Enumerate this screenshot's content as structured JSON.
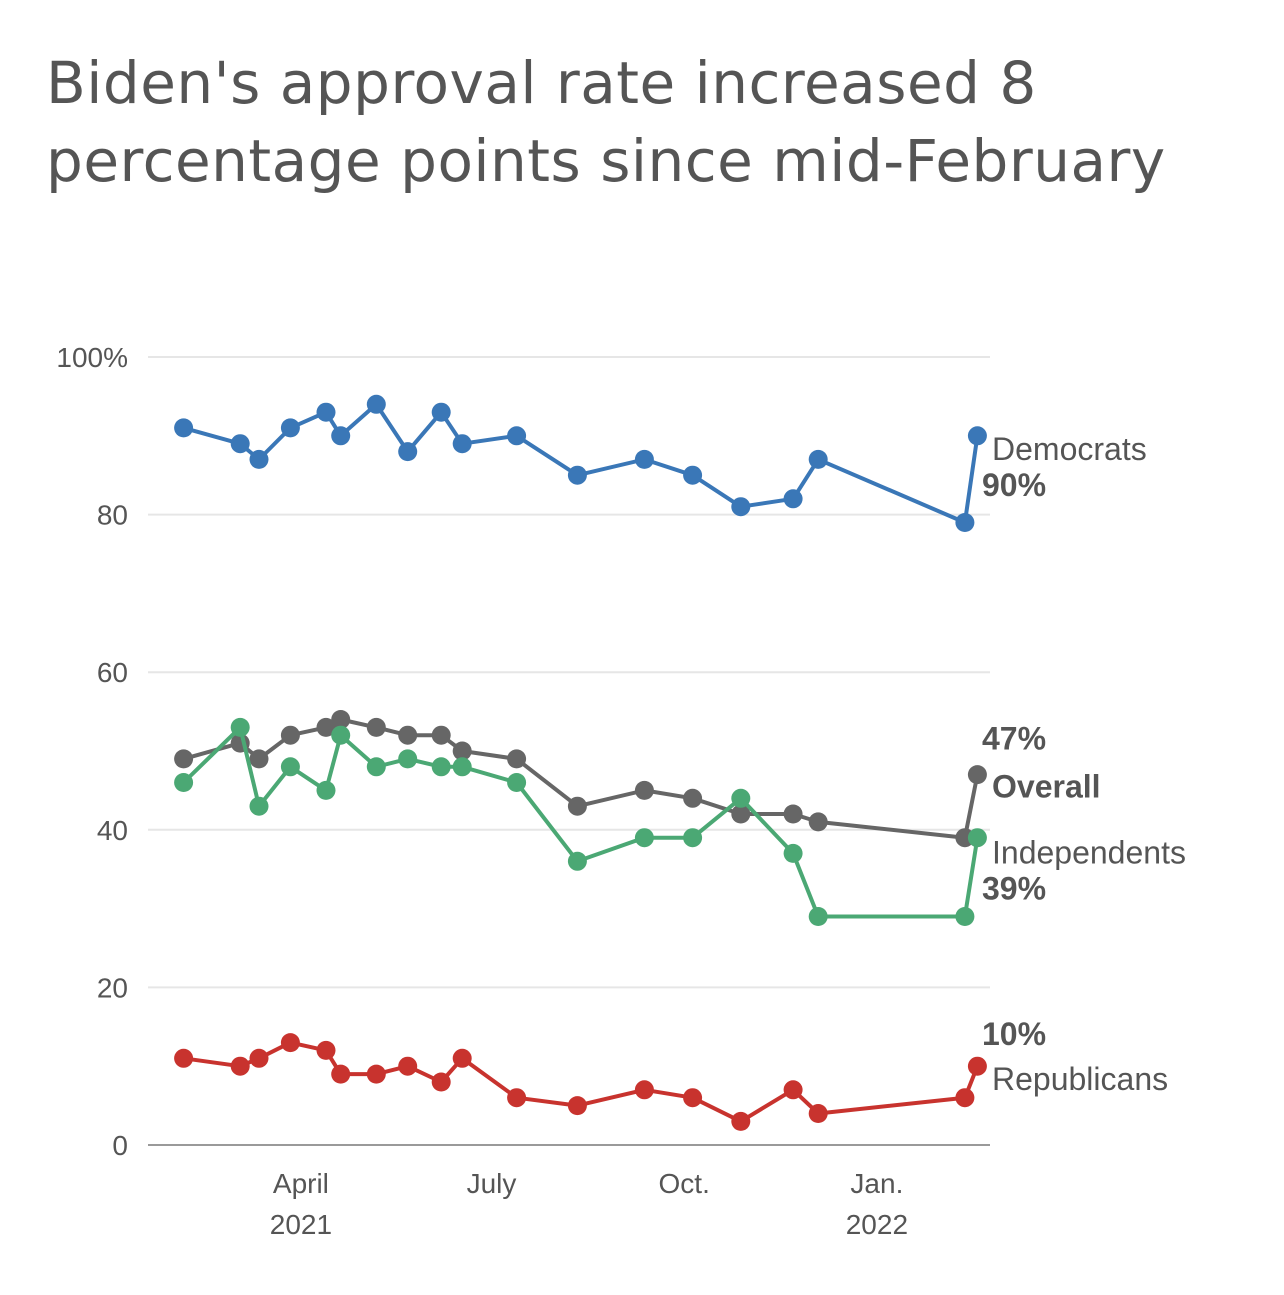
{
  "title": "Biden's approval rate increased 8 percentage points since mid-February",
  "chart_data": {
    "type": "line",
    "title": "Biden's approval rate increased 8 percentage points since mid-February",
    "xlabel": "",
    "ylabel": "",
    "x": [
      "2021-02-04",
      "2021-03-03",
      "2021-03-12",
      "2021-03-27",
      "2021-04-13",
      "2021-04-20",
      "2021-05-07",
      "2021-05-22",
      "2021-06-07",
      "2021-06-17",
      "2021-07-13",
      "2021-08-11",
      "2021-09-12",
      "2021-10-05",
      "2021-10-28",
      "2021-11-22",
      "2021-12-04",
      "2021-12-14",
      "2022-02-12",
      "2022-02-18"
    ],
    "x_axis": {
      "ticks": [
        {
          "date": "2021-04-01",
          "label": "April",
          "sublabel": "2021"
        },
        {
          "date": "2021-07-01",
          "label": "July",
          "sublabel": ""
        },
        {
          "date": "2021-10-01",
          "label": "Oct.",
          "sublabel": ""
        },
        {
          "date": "2022-01-01",
          "label": "Jan.",
          "sublabel": "2022"
        }
      ]
    },
    "ylim": [
      0,
      100
    ],
    "y_ticks": [
      {
        "value": 0,
        "label": "0"
      },
      {
        "value": 20,
        "label": "20"
      },
      {
        "value": 40,
        "label": "40"
      },
      {
        "value": 60,
        "label": "60"
      },
      {
        "value": 80,
        "label": "80"
      },
      {
        "value": 100,
        "label": "100%"
      }
    ],
    "grid": true,
    "series": [
      {
        "name": "Democrats",
        "color": "#3a77b7",
        "end_value_label": "90%",
        "values": [
          91,
          89,
          87,
          91,
          93,
          90,
          94,
          88,
          93,
          89,
          90,
          85,
          87,
          85,
          81,
          82,
          87,
          null,
          79,
          90
        ]
      },
      {
        "name": "Overall",
        "color": "#666666",
        "end_value_label": "47%",
        "values": [
          49,
          51,
          49,
          52,
          53,
          54,
          53,
          52,
          52,
          50,
          49,
          43,
          45,
          44,
          42,
          42,
          41,
          null,
          39,
          47
        ]
      },
      {
        "name": "Independents",
        "color": "#4ba874",
        "end_value_label": "39%",
        "values": [
          46,
          53,
          43,
          48,
          45,
          52,
          48,
          49,
          48,
          48,
          46,
          36,
          39,
          39,
          44,
          37,
          29,
          null,
          29,
          39
        ]
      },
      {
        "name": "Republicans",
        "color": "#c8332e",
        "end_value_label": "10%",
        "values": [
          11,
          10,
          11,
          13,
          12,
          9,
          9,
          10,
          8,
          11,
          6,
          5,
          7,
          6,
          3,
          7,
          4,
          null,
          6,
          10
        ]
      }
    ]
  }
}
